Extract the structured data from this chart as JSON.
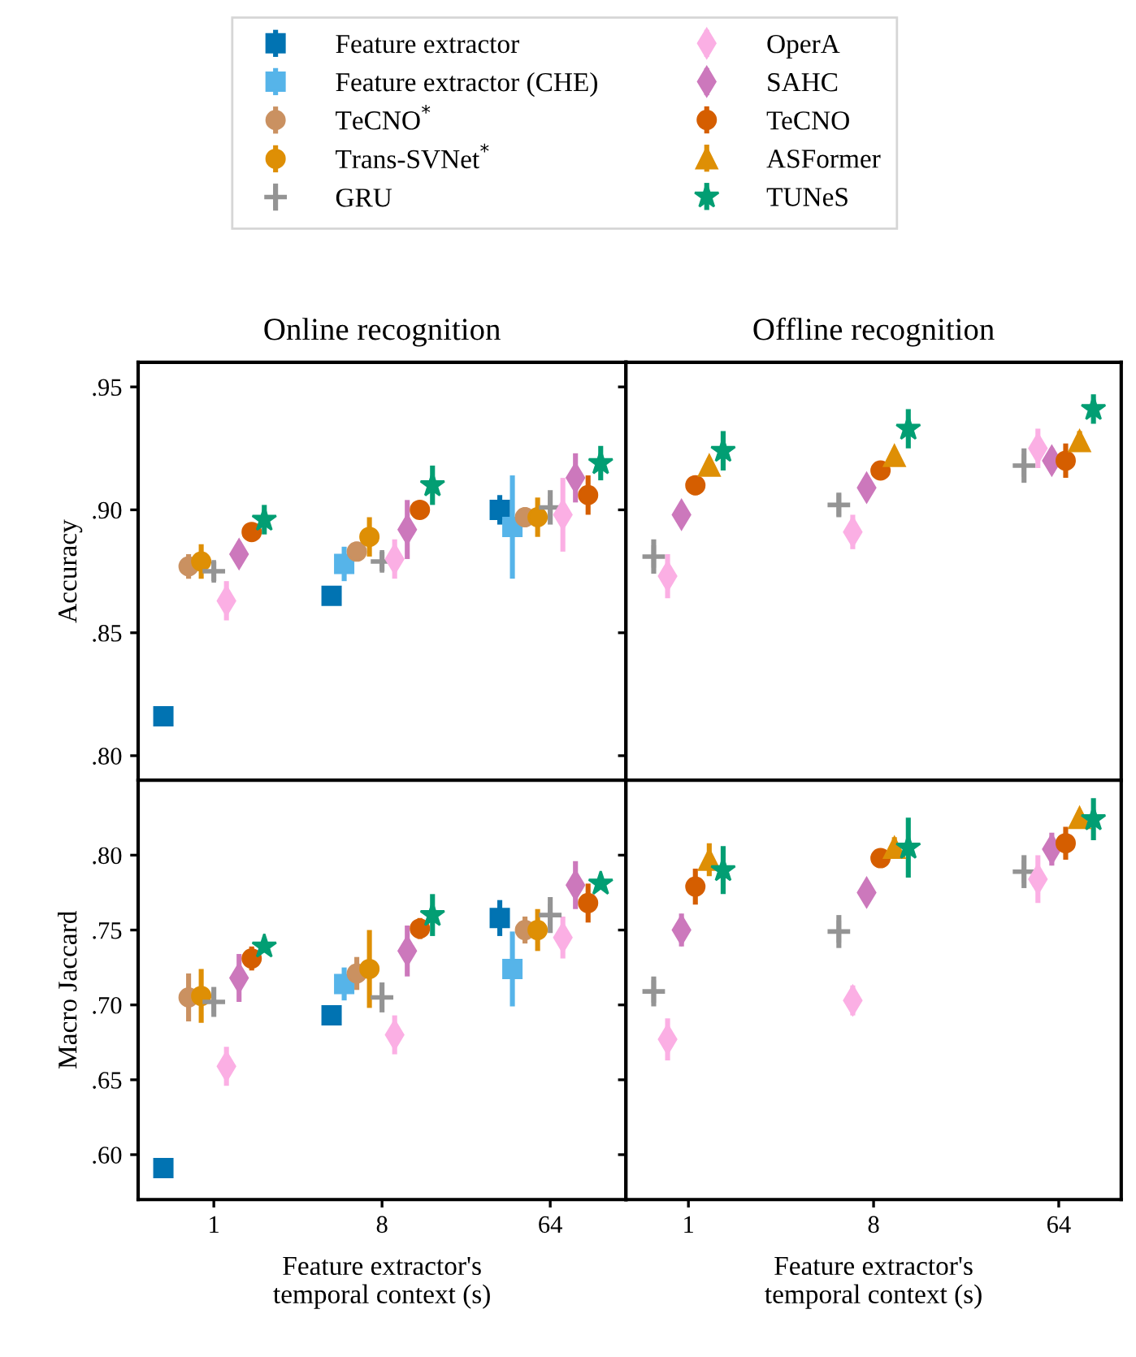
{
  "chart_data": [
    {
      "type": "scatter",
      "title": "Online recognition",
      "ylabel": "Accuracy",
      "categories": [
        "1",
        "8",
        "64"
      ],
      "ylim": [
        0.79,
        0.96
      ],
      "yticks": [
        {
          "value": 0.8,
          "label": ".80"
        },
        {
          "value": 0.85,
          "label": ".85"
        },
        {
          "value": 0.9,
          "label": ".90"
        },
        {
          "value": 0.95,
          "label": ".95"
        }
      ],
      "tick_labels": "y",
      "legend": "top",
      "series": [
        {
          "name": "Feature extractor",
          "color": "#0173b2",
          "marker": "square",
          "values": [
            0.816,
            0.865,
            0.9
          ],
          "errors": [
            null,
            null,
            0.006
          ]
        },
        {
          "name": "Feature extractor (CHE)",
          "color": "#56b4e9",
          "marker": "square",
          "values": [
            null,
            0.878,
            0.893
          ],
          "errors": [
            null,
            0.007,
            0.021
          ]
        },
        {
          "name": "TeCNO$^{*}$",
          "color": "#ca9161",
          "marker": "circle",
          "values": [
            0.877,
            0.883,
            0.897
          ],
          "errors": [
            0.005,
            0.004,
            0.004
          ]
        },
        {
          "name": "Trans-SVNet$^{*}$",
          "color": "#de8f05",
          "marker": "circle",
          "values": [
            0.879,
            0.889,
            0.897
          ],
          "errors": [
            0.007,
            0.008,
            0.008
          ]
        },
        {
          "name": "GRU",
          "color": "#949494",
          "marker": "cross",
          "values": [
            0.875,
            0.879,
            0.901
          ],
          "errors": [
            0.004,
            0.004,
            0.007
          ]
        },
        {
          "name": "OperA",
          "color": "#fbafe4",
          "marker": "diamond",
          "values": [
            0.863,
            0.88,
            0.898
          ],
          "errors": [
            0.008,
            0.008,
            0.015
          ]
        },
        {
          "name": "SAHC",
          "color": "#cc78bc",
          "marker": "diamond",
          "values": [
            0.882,
            0.892,
            0.913
          ],
          "errors": [
            0.005,
            0.012,
            0.01
          ]
        },
        {
          "name": "TeCNO",
          "color": "#d55e00",
          "marker": "circle",
          "values": [
            0.891,
            0.9,
            0.906
          ],
          "errors": [
            0.003,
            0.003,
            0.008
          ]
        },
        {
          "name": "TUNeS",
          "color": "#029e73",
          "marker": "star",
          "values": [
            0.896,
            0.91,
            0.919
          ],
          "errors": [
            0.006,
            0.008,
            0.007
          ]
        }
      ]
    },
    {
      "type": "scatter",
      "title": "Offline recognition",
      "categories": [
        "1",
        "8",
        "64"
      ],
      "ylim": [
        0.79,
        0.96
      ],
      "yticks": [
        {
          "value": 0.8,
          "label": ".80"
        },
        {
          "value": 0.85,
          "label": ".85"
        },
        {
          "value": 0.9,
          "label": ".90"
        },
        {
          "value": 0.95,
          "label": ".95"
        }
      ],
      "tick_labels": false,
      "series": [
        {
          "name": "GRU",
          "color": "#949494",
          "marker": "cross",
          "values": [
            0.881,
            0.902,
            0.918
          ],
          "errors": [
            0.007,
            0.005,
            0.007
          ]
        },
        {
          "name": "OperA",
          "color": "#fbafe4",
          "marker": "diamond",
          "values": [
            0.873,
            0.891,
            0.925
          ],
          "errors": [
            0.009,
            0.007,
            0.008
          ]
        },
        {
          "name": "SAHC",
          "color": "#cc78bc",
          "marker": "diamond",
          "values": [
            0.898,
            0.909,
            0.92
          ],
          "errors": [
            0.004,
            0.004,
            0.005
          ]
        },
        {
          "name": "TeCNO",
          "color": "#d55e00",
          "marker": "circle",
          "values": [
            0.91,
            0.916,
            0.92
          ],
          "errors": [
            0.004,
            0.003,
            0.007
          ]
        },
        {
          "name": "ASFormer",
          "color": "#de8f05",
          "marker": "triangle",
          "values": [
            0.918,
            0.922,
            0.928
          ],
          "errors": [
            0.003,
            0.003,
            0.004
          ]
        },
        {
          "name": "TUNeS",
          "color": "#029e73",
          "marker": "star",
          "values": [
            0.924,
            0.933,
            0.941
          ],
          "errors": [
            0.008,
            0.008,
            0.006
          ]
        }
      ]
    },
    {
      "type": "scatter",
      "ylabel": "Macro Jaccard",
      "xlabel": "Feature extractor's\ntemporal context (s)",
      "categories": [
        "1",
        "8",
        "64"
      ],
      "ylim": [
        0.57,
        0.85
      ],
      "yticks": [
        {
          "value": 0.6,
          "label": ".60"
        },
        {
          "value": 0.65,
          "label": ".65"
        },
        {
          "value": 0.7,
          "label": ".70"
        },
        {
          "value": 0.75,
          "label": ".75"
        },
        {
          "value": 0.8,
          "label": ".80"
        }
      ],
      "series": [
        {
          "name": "Feature extractor",
          "color": "#0173b2",
          "marker": "square",
          "values": [
            0.591,
            0.693,
            0.758
          ],
          "errors": [
            null,
            null,
            0.012
          ]
        },
        {
          "name": "Feature extractor (CHE)",
          "color": "#56b4e9",
          "marker": "square",
          "values": [
            null,
            0.714,
            0.724
          ],
          "errors": [
            null,
            0.011,
            0.025
          ]
        },
        {
          "name": "TeCNO$^{*}$",
          "color": "#ca9161",
          "marker": "circle",
          "values": [
            0.705,
            0.721,
            0.75
          ],
          "errors": [
            0.016,
            0.011,
            0.009
          ]
        },
        {
          "name": "Trans-SVNet$^{*}$",
          "color": "#de8f05",
          "marker": "circle",
          "values": [
            0.706,
            0.724,
            0.75
          ],
          "errors": [
            0.018,
            0.026,
            0.014
          ]
        },
        {
          "name": "GRU",
          "color": "#949494",
          "marker": "cross",
          "values": [
            0.702,
            0.705,
            0.76
          ],
          "errors": [
            0.01,
            0.01,
            0.012
          ]
        },
        {
          "name": "OperA",
          "color": "#fbafe4",
          "marker": "diamond",
          "values": [
            0.659,
            0.68,
            0.745
          ],
          "errors": [
            0.013,
            0.013,
            0.014
          ]
        },
        {
          "name": "SAHC",
          "color": "#cc78bc",
          "marker": "diamond",
          "values": [
            0.718,
            0.736,
            0.78
          ],
          "errors": [
            0.016,
            0.017,
            0.016
          ]
        },
        {
          "name": "TeCNO",
          "color": "#d55e00",
          "marker": "circle",
          "values": [
            0.731,
            0.751,
            0.768
          ],
          "errors": [
            0.008,
            0.007,
            0.013
          ]
        },
        {
          "name": "TUNeS",
          "color": "#029e73",
          "marker": "star",
          "values": [
            0.739,
            0.76,
            0.781
          ],
          "errors": [
            0.004,
            0.014,
            0.004
          ]
        }
      ]
    },
    {
      "type": "scatter",
      "xlabel": "Feature extractor's\ntemporal context (s)",
      "categories": [
        "1",
        "8",
        "64"
      ],
      "ylim": [
        0.57,
        0.85
      ],
      "yticks": [
        {
          "value": 0.6,
          "label": ".60"
        },
        {
          "value": 0.65,
          "label": ".65"
        },
        {
          "value": 0.7,
          "label": ".70"
        },
        {
          "value": 0.75,
          "label": ".75"
        },
        {
          "value": 0.8,
          "label": ".80"
        }
      ],
      "tick_labels": "x",
      "series": [
        {
          "name": "GRU",
          "color": "#949494",
          "marker": "cross",
          "values": [
            0.709,
            0.749,
            0.789
          ],
          "errors": [
            0.01,
            0.011,
            0.011
          ]
        },
        {
          "name": "OperA",
          "color": "#fbafe4",
          "marker": "diamond",
          "values": [
            0.677,
            0.703,
            0.784
          ],
          "errors": [
            0.014,
            0.01,
            0.016
          ]
        },
        {
          "name": "SAHC",
          "color": "#cc78bc",
          "marker": "diamond",
          "values": [
            0.75,
            0.775,
            0.804
          ],
          "errors": [
            0.011,
            0.007,
            0.011
          ]
        },
        {
          "name": "TeCNO",
          "color": "#d55e00",
          "marker": "circle",
          "values": [
            0.779,
            0.798,
            0.808
          ],
          "errors": [
            0.012,
            0.005,
            0.011
          ]
        },
        {
          "name": "ASFormer",
          "color": "#de8f05",
          "marker": "triangle",
          "values": [
            0.797,
            0.805,
            0.825
          ],
          "errors": [
            0.011,
            0.007,
            0.005
          ]
        },
        {
          "name": "TUNeS",
          "color": "#029e73",
          "marker": "star",
          "values": [
            0.79,
            0.805,
            0.824
          ],
          "errors": [
            0.016,
            0.02,
            0.014
          ]
        }
      ]
    }
  ]
}
